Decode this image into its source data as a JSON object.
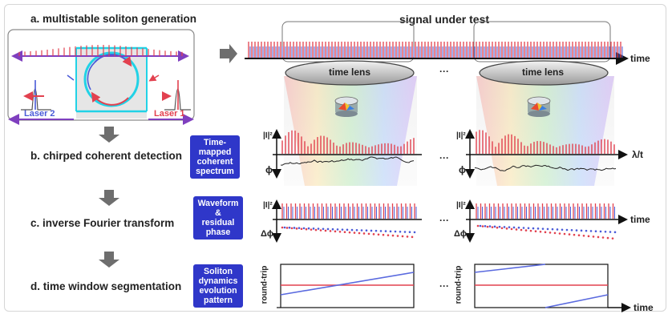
{
  "steps": {
    "a": "a. multistable soliton generation",
    "b": "b. chirped coherent detection",
    "c": "c. inverse Fourier transform",
    "d": "d. time window segmentation"
  },
  "signal_title": "signal under test",
  "time_lens": "time lens",
  "ellipsis": "···",
  "lasers": {
    "left": "Laser 2",
    "right": "Laser 1"
  },
  "boxes": {
    "b": [
      "Time-",
      "mapped",
      "coherent",
      "spectrum"
    ],
    "c": [
      "Waveform",
      "&",
      "residual",
      "phase"
    ],
    "d": [
      "Soliton",
      "dynamics",
      "evolution",
      "pattern"
    ]
  },
  "axes": {
    "time": "time",
    "lambda_t": "λ/t",
    "intensity": "|I|²",
    "phi": "ϕ",
    "delta_phi": "Δϕ",
    "round_trip": "round-trip"
  },
  "colors": {
    "accent_blue": "#2f37c9",
    "pulse_red": "#e2414f",
    "pulse_blue": "#4a5bd8",
    "laser_purple": "#7f3fbf",
    "ring_cyan": "#21d2e6",
    "arrow_gray": "#6e6e6e"
  },
  "icons": [
    "right-arrow-icon",
    "down-arrow-icon",
    "lens-device-icon"
  ]
}
